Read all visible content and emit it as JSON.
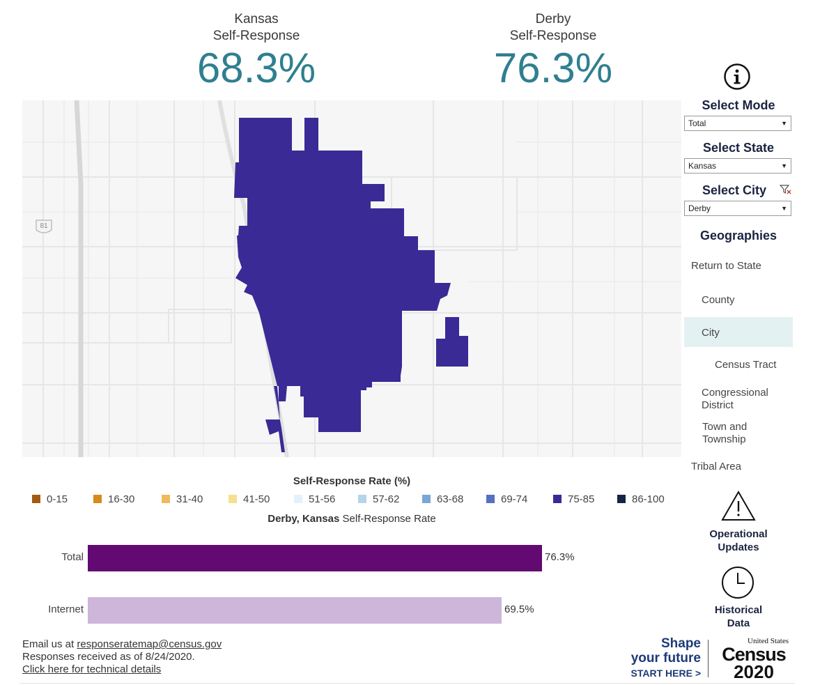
{
  "stats": [
    {
      "label_line1": "Kansas",
      "label_line2": "Self-Response",
      "value": "68.3%"
    },
    {
      "label_line1": "Derby",
      "label_line2": "Self-Response",
      "value": "76.3%"
    }
  ],
  "map": {
    "highway_shield": "81",
    "city_fill_color": "#3a2a96"
  },
  "legend": {
    "title": "Self-Response Rate (%)",
    "items": [
      {
        "label": "0-15",
        "color": "#a35a10"
      },
      {
        "label": "16-30",
        "color": "#d68a1c"
      },
      {
        "label": "31-40",
        "color": "#efb95e"
      },
      {
        "label": "41-50",
        "color": "#f6df8e"
      },
      {
        "label": "51-56",
        "color": "#e4f1fa"
      },
      {
        "label": "57-62",
        "color": "#b5d5ea"
      },
      {
        "label": "63-68",
        "color": "#7aa7d4"
      },
      {
        "label": "69-74",
        "color": "#5570c2"
      },
      {
        "label": "75-85",
        "color": "#3a2a96"
      },
      {
        "label": "86-100",
        "color": "#142444"
      }
    ]
  },
  "bar_chart": {
    "title_place": "Derby, Kansas",
    "title_rest": " Self-Response Rate",
    "bars": [
      {
        "label": "Total",
        "value": 76.3,
        "value_label": "76.3%",
        "color": "#620a72"
      },
      {
        "label": "Internet",
        "value": 69.5,
        "value_label": "69.5%",
        "color": "#cdb6d9"
      }
    ]
  },
  "footer": {
    "email_prefix": "Email us at ",
    "email": "responseratemap@census.gov",
    "received": "Responses received as of 8/24/2020.",
    "tech_link": "Click here for technical details"
  },
  "panel": {
    "mode_title": "Select Mode",
    "mode_value": "Total",
    "state_title": "Select State",
    "state_value": "Kansas",
    "city_title": "Select City",
    "city_value": "Derby",
    "geographies_title": "Geographies",
    "geographies": {
      "return_state": "Return to State",
      "county": "County",
      "city": "City",
      "tract": "Census Tract",
      "cong_1": "Congressional",
      "cong_2": "District",
      "town_1": "Town and",
      "town_2": "Township",
      "tribal": "Tribal Area"
    },
    "operational_1": "Operational",
    "operational_2": "Updates",
    "historical_1": "Historical",
    "historical_2": "Data"
  },
  "branding": {
    "shape": "Shape",
    "future": "your future",
    "start": "START HERE >",
    "us": "United States",
    "census": "Census",
    "year": "2020"
  }
}
